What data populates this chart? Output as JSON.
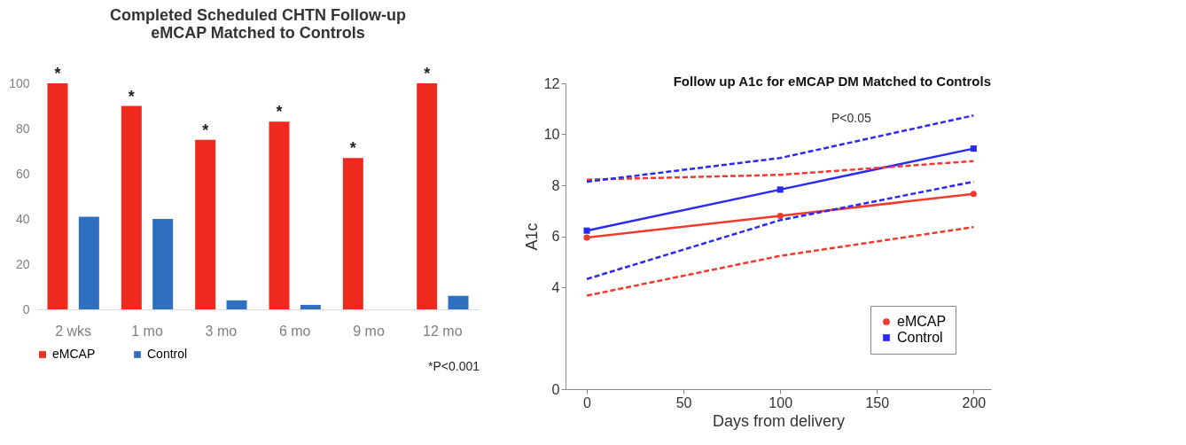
{
  "chart_data": [
    {
      "type": "bar",
      "title": [
        "Completed Scheduled CHTN Follow-up",
        "eMCAP Matched to Controls"
      ],
      "categories": [
        "2 wks",
        "1 mo",
        "3 mo",
        "6 mo",
        "9 mo",
        "12 mo"
      ],
      "series": [
        {
          "name": "eMCAP",
          "color": "#ee2a1e",
          "values": [
            100,
            90,
            75,
            83,
            67,
            100
          ]
        },
        {
          "name": "Control",
          "color": "#2f6fc0",
          "values": [
            41,
            40,
            4,
            2,
            0,
            6
          ]
        }
      ],
      "ylim": [
        0,
        100
      ],
      "yticks": [
        0,
        20,
        40,
        60,
        80,
        100
      ],
      "grid": false,
      "legend": "bottom",
      "annotations": [
        "*",
        "*",
        "*",
        "*",
        "*",
        "*",
        "*P<0.001"
      ]
    },
    {
      "type": "line",
      "title": "Follow up A1c for eMCAP DM Matched to Controls",
      "xlabel": "Days from delivery",
      "ylabel": "A1c",
      "x": [
        0,
        100,
        200
      ],
      "series": [
        {
          "name": "eMCAP",
          "color": "#f03a2e",
          "values": [
            5.95,
            6.8,
            7.66
          ],
          "marker": "circle",
          "line_style": "solid"
        },
        {
          "name": "Control",
          "color": "#2a2af0",
          "values": [
            6.22,
            7.83,
            9.44
          ],
          "marker": "square",
          "line_style": "solid"
        },
        {
          "color": "#f03a2e",
          "values": [
            8.22,
            8.41,
            8.95
          ],
          "marker": "none",
          "line_style": "dashed"
        },
        {
          "color": "#f03a2e",
          "values": [
            3.67,
            5.23,
            6.36
          ],
          "marker": "none",
          "line_style": "dashed"
        },
        {
          "color": "#2a2af0",
          "values": [
            8.14,
            9.07,
            10.74
          ],
          "marker": "none",
          "line_style": "dashed"
        },
        {
          "color": "#2a2af0",
          "values": [
            4.32,
            6.63,
            8.14
          ],
          "marker": "none",
          "line_style": "dashed"
        }
      ],
      "xlim": [
        -11,
        209
      ],
      "xticks": [
        0,
        50,
        100,
        150,
        200
      ],
      "ylim": [
        0,
        12
      ],
      "yticks": [
        0,
        4,
        6,
        8,
        10,
        12
      ],
      "grid": false,
      "legend": "bottom right",
      "annotations": [
        "P<0.05"
      ]
    }
  ]
}
